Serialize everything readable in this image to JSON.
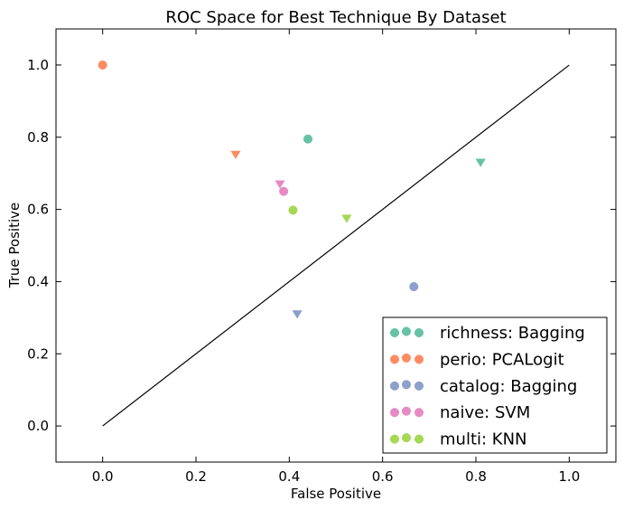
{
  "chart_data": {
    "type": "scatter",
    "title": "ROC Space for Best Technique By Dataset",
    "xlabel": "False Positive",
    "ylabel": "True Positive",
    "xlim": [
      -0.1,
      1.1
    ],
    "ylim": [
      -0.1,
      1.1
    ],
    "xticks": [
      "0.0",
      "0.2",
      "0.4",
      "0.6",
      "0.8",
      "1.0"
    ],
    "yticks": [
      "0.0",
      "0.2",
      "0.4",
      "0.6",
      "0.8",
      "1.0"
    ],
    "grid": false,
    "legend_position": "lower-right",
    "reference_line": [
      [
        0,
        0
      ],
      [
        1,
        1
      ]
    ],
    "series": [
      {
        "name": "richness: Bagging",
        "color": "#66c2a5",
        "points": [
          {
            "x": 0.44,
            "y": 0.795,
            "marker": "circle"
          },
          {
            "x": 0.81,
            "y": 0.73,
            "marker": "triangle-down"
          }
        ]
      },
      {
        "name": "perio: PCALogit",
        "color": "#fc8d62",
        "points": [
          {
            "x": 0.0,
            "y": 1.0,
            "marker": "circle"
          },
          {
            "x": 0.285,
            "y": 0.752,
            "marker": "triangle-down"
          }
        ]
      },
      {
        "name": "catalog: Bagging",
        "color": "#8da0cb",
        "points": [
          {
            "x": 0.667,
            "y": 0.386,
            "marker": "circle"
          },
          {
            "x": 0.417,
            "y": 0.31,
            "marker": "triangle-down"
          }
        ]
      },
      {
        "name": "naive: SVM",
        "color": "#e78ac3",
        "points": [
          {
            "x": 0.388,
            "y": 0.65,
            "marker": "circle"
          },
          {
            "x": 0.38,
            "y": 0.67,
            "marker": "triangle-down"
          }
        ]
      },
      {
        "name": "multi: KNN",
        "color": "#a6d854",
        "points": [
          {
            "x": 0.408,
            "y": 0.598,
            "marker": "circle"
          },
          {
            "x": 0.523,
            "y": 0.575,
            "marker": "triangle-down"
          }
        ]
      }
    ]
  }
}
